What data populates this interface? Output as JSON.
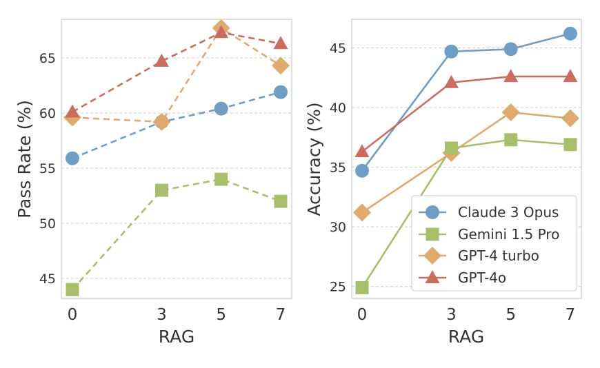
{
  "chart_data": [
    {
      "type": "line",
      "xlabel": "RAG",
      "ylabel": "Pass Rate (%)",
      "x": [
        0,
        3,
        5,
        7
      ],
      "xticks": [
        "0",
        "3",
        "5",
        "7"
      ],
      "ylim": [
        43.2,
        68.5
      ],
      "yticks": [
        45,
        50,
        55,
        60,
        65
      ],
      "grid": true,
      "line_style": "dashed",
      "series": [
        {
          "name": "Claude 3 Opus",
          "values": [
            55.9,
            59.2,
            60.4,
            61.9
          ],
          "color": "#6d9ec6",
          "marker": "circle"
        },
        {
          "name": "Gemini 1.5 Pro",
          "values": [
            44.0,
            53.0,
            54.0,
            52.0
          ],
          "color": "#a8bf6a",
          "marker": "square"
        },
        {
          "name": "GPT-4 turbo",
          "values": [
            59.6,
            59.2,
            67.7,
            64.3
          ],
          "color": "#e0aa6c",
          "marker": "diamond"
        },
        {
          "name": "GPT-4o",
          "values": [
            60.1,
            64.7,
            67.3,
            66.3
          ],
          "color": "#cc6c5c",
          "marker": "triangle"
        }
      ]
    },
    {
      "type": "line",
      "xlabel": "RAG",
      "ylabel": "Accuracy (%)",
      "x": [
        0,
        3,
        5,
        7
      ],
      "xticks": [
        "0",
        "3",
        "5",
        "7"
      ],
      "ylim": [
        24.0,
        47.4
      ],
      "yticks": [
        25,
        30,
        35,
        40,
        45
      ],
      "grid": true,
      "line_style": "solid",
      "legend": "bottom-right",
      "series": [
        {
          "name": "Claude 3 Opus",
          "values": [
            34.7,
            44.7,
            44.9,
            46.2
          ],
          "color": "#6d9ec6",
          "marker": "circle"
        },
        {
          "name": "Gemini 1.5 Pro",
          "values": [
            24.9,
            36.6,
            37.3,
            36.9
          ],
          "color": "#a8bf6a",
          "marker": "square"
        },
        {
          "name": "GPT-4 turbo",
          "values": [
            31.2,
            36.2,
            39.6,
            39.1
          ],
          "color": "#e0aa6c",
          "marker": "diamond"
        },
        {
          "name": "GPT-4o",
          "values": [
            36.3,
            42.1,
            42.6,
            42.6
          ],
          "color": "#cc6c5c",
          "marker": "triangle"
        }
      ]
    }
  ]
}
